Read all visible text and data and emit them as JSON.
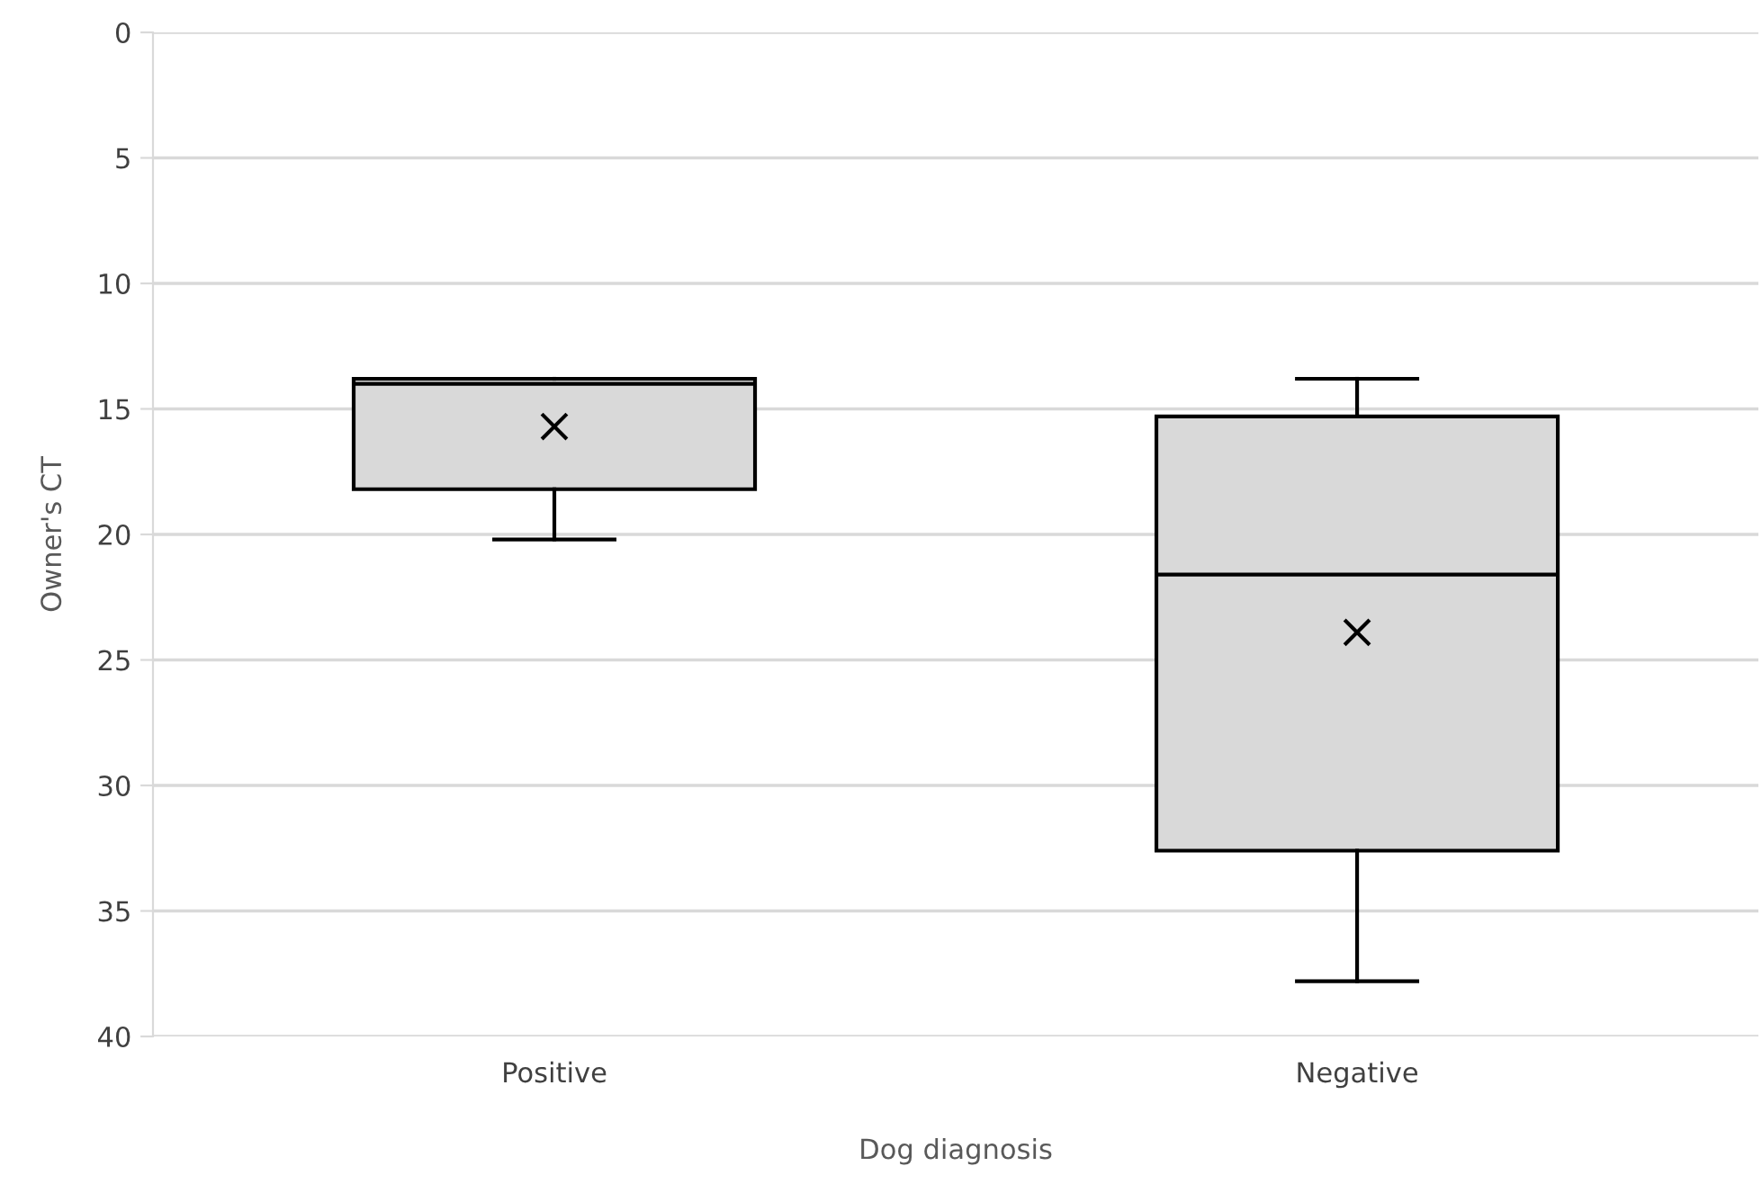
{
  "chart_data": {
    "type": "box",
    "xlabel": "Dog diagnosis",
    "ylabel": "Owner's CT",
    "categories": [
      "Positive",
      "Negative"
    ],
    "boxes": [
      {
        "low": 13.8,
        "q1": 13.8,
        "median": 14.0,
        "q3": 18.2,
        "high": 20.2,
        "mean": 15.7
      },
      {
        "low": 13.8,
        "q1": 15.3,
        "median": 21.6,
        "q3": 32.6,
        "high": 37.8,
        "mean": 23.9
      }
    ],
    "color": "#d9d9d9",
    "ylim": [
      40,
      0
    ],
    "yticks": [
      0,
      5,
      10,
      15,
      20,
      25,
      30,
      35,
      40
    ],
    "grid": "y",
    "legend": false
  }
}
